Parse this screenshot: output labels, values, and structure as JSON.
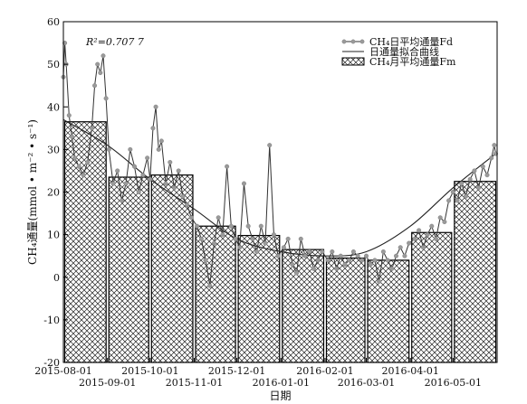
{
  "chart_data": {
    "type": "bar",
    "xlabel": "日期",
    "ylabel": "CH₄通量(mmol • m⁻² • s⁻¹)",
    "ylim": [
      -20,
      60
    ],
    "yticks": [
      -20,
      -10,
      0,
      10,
      20,
      30,
      40,
      50,
      60
    ],
    "xticks": [
      {
        "date": "2015-08-01",
        "label": "2015-08-01",
        "row": 1
      },
      {
        "date": "2015-09-01",
        "label": "2015-09-01",
        "row": 2
      },
      {
        "date": "2015-10-01",
        "label": "2015-10-01",
        "row": 1
      },
      {
        "date": "2015-11-01",
        "label": "2015-11-01",
        "row": 2
      },
      {
        "date": "2015-12-01",
        "label": "2015-12-01",
        "row": 1
      },
      {
        "date": "2016-01-01",
        "label": "2016-01-01",
        "row": 2
      },
      {
        "date": "2016-02-01",
        "label": "2016-02-01",
        "row": 1
      },
      {
        "date": "2016-03-01",
        "label": "2016-03-01",
        "row": 2
      },
      {
        "date": "2016-04-01",
        "label": "2016-04-01",
        "row": 1
      },
      {
        "date": "2016-05-01",
        "label": "2016-05-01",
        "row": 2
      }
    ],
    "annotation": "R²=0.707 7",
    "legend": {
      "position": "top-right",
      "entries": [
        {
          "label": "CH₄日平均通量Fd",
          "kind": "line-marker"
        },
        {
          "label": "日通量拟合曲线",
          "kind": "line"
        },
        {
          "label": "CH₄月平均通量Fm",
          "kind": "hatched-bar"
        }
      ]
    },
    "series": [
      {
        "name": "CH₄月平均通量Fm",
        "type": "bar",
        "bars": [
          {
            "start": "2015-08-01",
            "end": "2015-09-01",
            "value": 36.5
          },
          {
            "start": "2015-09-01",
            "end": "2015-10-01",
            "value": 23.5
          },
          {
            "start": "2015-10-01",
            "end": "2015-11-01",
            "value": 24.0
          },
          {
            "start": "2015-11-01",
            "end": "2015-12-01",
            "value": 12.0
          },
          {
            "start": "2015-12-01",
            "end": "2016-01-01",
            "value": 9.8
          },
          {
            "start": "2016-01-01",
            "end": "2016-02-01",
            "value": 6.5
          },
          {
            "start": "2016-02-01",
            "end": "2016-03-01",
            "value": 4.5
          },
          {
            "start": "2016-03-01",
            "end": "2016-04-01",
            "value": 4.0
          },
          {
            "start": "2016-04-01",
            "end": "2016-05-01",
            "value": 10.5
          },
          {
            "start": "2016-05-01",
            "end": "2016-06-01",
            "value": 22.5
          }
        ]
      },
      {
        "name": "日通量拟合曲线",
        "type": "line",
        "points": [
          {
            "date": "2015-08-01",
            "value": 37
          },
          {
            "date": "2015-09-01",
            "value": 31
          },
          {
            "date": "2015-10-01",
            "value": 23
          },
          {
            "date": "2015-11-01",
            "value": 16
          },
          {
            "date": "2015-12-01",
            "value": 9
          },
          {
            "date": "2016-01-01",
            "value": 6
          },
          {
            "date": "2016-02-01",
            "value": 5
          },
          {
            "date": "2016-03-01",
            "value": 6
          },
          {
            "date": "2016-04-01",
            "value": 12
          },
          {
            "date": "2016-05-01",
            "value": 21
          },
          {
            "date": "2016-05-31",
            "value": 29
          }
        ]
      },
      {
        "name": "CH₄日平均通量Fd",
        "type": "line",
        "points": [
          {
            "date": "2015-08-01",
            "value": 47
          },
          {
            "date": "2015-08-02",
            "value": 55
          },
          {
            "date": "2015-08-03",
            "value": 50
          },
          {
            "date": "2015-08-05",
            "value": 38
          },
          {
            "date": "2015-08-07",
            "value": 33
          },
          {
            "date": "2015-08-09",
            "value": 28
          },
          {
            "date": "2015-08-12",
            "value": 26
          },
          {
            "date": "2015-08-15",
            "value": 24
          },
          {
            "date": "2015-08-18",
            "value": 27
          },
          {
            "date": "2015-08-21",
            "value": 35
          },
          {
            "date": "2015-08-23",
            "value": 45
          },
          {
            "date": "2015-08-25",
            "value": 50
          },
          {
            "date": "2015-08-27",
            "value": 48
          },
          {
            "date": "2015-08-29",
            "value": 52
          },
          {
            "date": "2015-08-31",
            "value": 42
          },
          {
            "date": "2015-09-02",
            "value": 30
          },
          {
            "date": "2015-09-05",
            "value": 22
          },
          {
            "date": "2015-09-08",
            "value": 25
          },
          {
            "date": "2015-09-11",
            "value": 18
          },
          {
            "date": "2015-09-14",
            "value": 22
          },
          {
            "date": "2015-09-17",
            "value": 30
          },
          {
            "date": "2015-09-20",
            "value": 26
          },
          {
            "date": "2015-09-23",
            "value": 20
          },
          {
            "date": "2015-09-26",
            "value": 24
          },
          {
            "date": "2015-09-29",
            "value": 28
          },
          {
            "date": "2015-10-01",
            "value": 23
          },
          {
            "date": "2015-10-03",
            "value": 35
          },
          {
            "date": "2015-10-05",
            "value": 40
          },
          {
            "date": "2015-10-07",
            "value": 30
          },
          {
            "date": "2015-10-09",
            "value": 32
          },
          {
            "date": "2015-10-12",
            "value": 22
          },
          {
            "date": "2015-10-15",
            "value": 27
          },
          {
            "date": "2015-10-18",
            "value": 21
          },
          {
            "date": "2015-10-21",
            "value": 25
          },
          {
            "date": "2015-10-24",
            "value": 19
          },
          {
            "date": "2015-10-27",
            "value": 17
          },
          {
            "date": "2015-10-30",
            "value": 14
          },
          {
            "date": "2015-11-03",
            "value": 12
          },
          {
            "date": "2015-11-06",
            "value": 9
          },
          {
            "date": "2015-11-09",
            "value": 4
          },
          {
            "date": "2015-11-12",
            "value": -2
          },
          {
            "date": "2015-11-15",
            "value": 8
          },
          {
            "date": "2015-11-18",
            "value": 14
          },
          {
            "date": "2015-11-21",
            "value": 10
          },
          {
            "date": "2015-11-24",
            "value": 26
          },
          {
            "date": "2015-11-27",
            "value": 12
          },
          {
            "date": "2015-11-30",
            "value": 9
          },
          {
            "date": "2015-12-03",
            "value": 7
          },
          {
            "date": "2015-12-06",
            "value": 22
          },
          {
            "date": "2015-12-09",
            "value": 12
          },
          {
            "date": "2015-12-12",
            "value": 9
          },
          {
            "date": "2015-12-15",
            "value": 6
          },
          {
            "date": "2015-12-18",
            "value": 12
          },
          {
            "date": "2015-12-21",
            "value": 8
          },
          {
            "date": "2015-12-24",
            "value": 31
          },
          {
            "date": "2015-12-27",
            "value": 10
          },
          {
            "date": "2015-12-30",
            "value": 5
          },
          {
            "date": "2016-01-03",
            "value": 7
          },
          {
            "date": "2016-01-06",
            "value": 9
          },
          {
            "date": "2016-01-09",
            "value": 3
          },
          {
            "date": "2016-01-12",
            "value": 1
          },
          {
            "date": "2016-01-15",
            "value": 9
          },
          {
            "date": "2016-01-18",
            "value": 5
          },
          {
            "date": "2016-01-21",
            "value": 6
          },
          {
            "date": "2016-01-24",
            "value": 2
          },
          {
            "date": "2016-01-27",
            "value": 4
          },
          {
            "date": "2016-01-30",
            "value": 6
          },
          {
            "date": "2016-02-03",
            "value": 4
          },
          {
            "date": "2016-02-06",
            "value": 6
          },
          {
            "date": "2016-02-09",
            "value": 2
          },
          {
            "date": "2016-02-12",
            "value": 5
          },
          {
            "date": "2016-02-15",
            "value": 3
          },
          {
            "date": "2016-02-18",
            "value": 4
          },
          {
            "date": "2016-02-21",
            "value": 6
          },
          {
            "date": "2016-02-24",
            "value": 5
          },
          {
            "date": "2016-02-27",
            "value": 4
          },
          {
            "date": "2016-03-01",
            "value": 5
          },
          {
            "date": "2016-03-04",
            "value": 3
          },
          {
            "date": "2016-03-07",
            "value": 4
          },
          {
            "date": "2016-03-10",
            "value": -1
          },
          {
            "date": "2016-03-13",
            "value": 6
          },
          {
            "date": "2016-03-16",
            "value": 4
          },
          {
            "date": "2016-03-19",
            "value": 2
          },
          {
            "date": "2016-03-22",
            "value": 5
          },
          {
            "date": "2016-03-25",
            "value": 7
          },
          {
            "date": "2016-03-28",
            "value": 5
          },
          {
            "date": "2016-03-31",
            "value": 8
          },
          {
            "date": "2016-04-04",
            "value": 9
          },
          {
            "date": "2016-04-07",
            "value": 11
          },
          {
            "date": "2016-04-10",
            "value": 7
          },
          {
            "date": "2016-04-13",
            "value": 10
          },
          {
            "date": "2016-04-16",
            "value": 12
          },
          {
            "date": "2016-04-19",
            "value": 9
          },
          {
            "date": "2016-04-22",
            "value": 14
          },
          {
            "date": "2016-04-25",
            "value": 13
          },
          {
            "date": "2016-04-28",
            "value": 18
          },
          {
            "date": "2016-05-01",
            "value": 20
          },
          {
            "date": "2016-05-04",
            "value": 18
          },
          {
            "date": "2016-05-07",
            "value": 22
          },
          {
            "date": "2016-05-10",
            "value": 19
          },
          {
            "date": "2016-05-13",
            "value": 23
          },
          {
            "date": "2016-05-16",
            "value": 25
          },
          {
            "date": "2016-05-19",
            "value": 21
          },
          {
            "date": "2016-05-22",
            "value": 26
          },
          {
            "date": "2016-05-25",
            "value": 24
          },
          {
            "date": "2016-05-28",
            "value": 28
          },
          {
            "date": "2016-05-30",
            "value": 31
          },
          {
            "date": "2016-05-31",
            "value": 29
          }
        ]
      }
    ]
  }
}
